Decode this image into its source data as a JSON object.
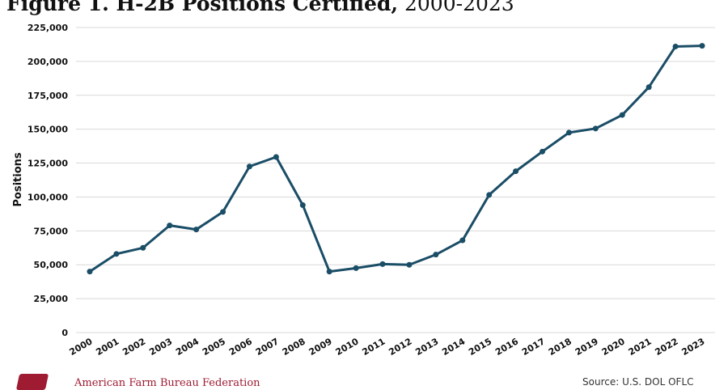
{
  "title": {
    "bold": "Figure 1. H-2B Positions Certified,",
    "normal": " 2000-2023"
  },
  "chart_data": {
    "type": "line",
    "title": "Figure 1. H-2B Positions Certified, 2000-2023",
    "xlabel": "",
    "ylabel": "Positions",
    "ylim": [
      0,
      225000
    ],
    "yticks": [
      "0",
      "25,000",
      "50,000",
      "75,000",
      "100,000",
      "125,000",
      "150,000",
      "175,000",
      "200,000",
      "225,000"
    ],
    "ytick_values": [
      0,
      25000,
      50000,
      75000,
      100000,
      125000,
      150000,
      175000,
      200000,
      225000
    ],
    "categories": [
      "2000",
      "2001",
      "2002",
      "2003",
      "2004",
      "2005",
      "2006",
      "2007",
      "2008",
      "2009",
      "2010",
      "2011",
      "2012",
      "2013",
      "2014",
      "2015",
      "2016",
      "2017",
      "2018",
      "2019",
      "2020",
      "2021",
      "2022",
      "2023"
    ],
    "series": [
      {
        "values": [
          45000,
          58000,
          62500,
          79000,
          76000,
          89000,
          122500,
          129500,
          94000,
          45000,
          47500,
          50500,
          50000,
          57500,
          68000,
          101500,
          119000,
          133500,
          147500,
          150500,
          160500,
          181000,
          211000,
          211500
        ],
        "color": "#1a4d66"
      }
    ],
    "grid": true,
    "legend": "none"
  },
  "footer": {
    "organization": "American Farm Bureau Federation",
    "source": "Source: U.S. DOL OFLC"
  }
}
